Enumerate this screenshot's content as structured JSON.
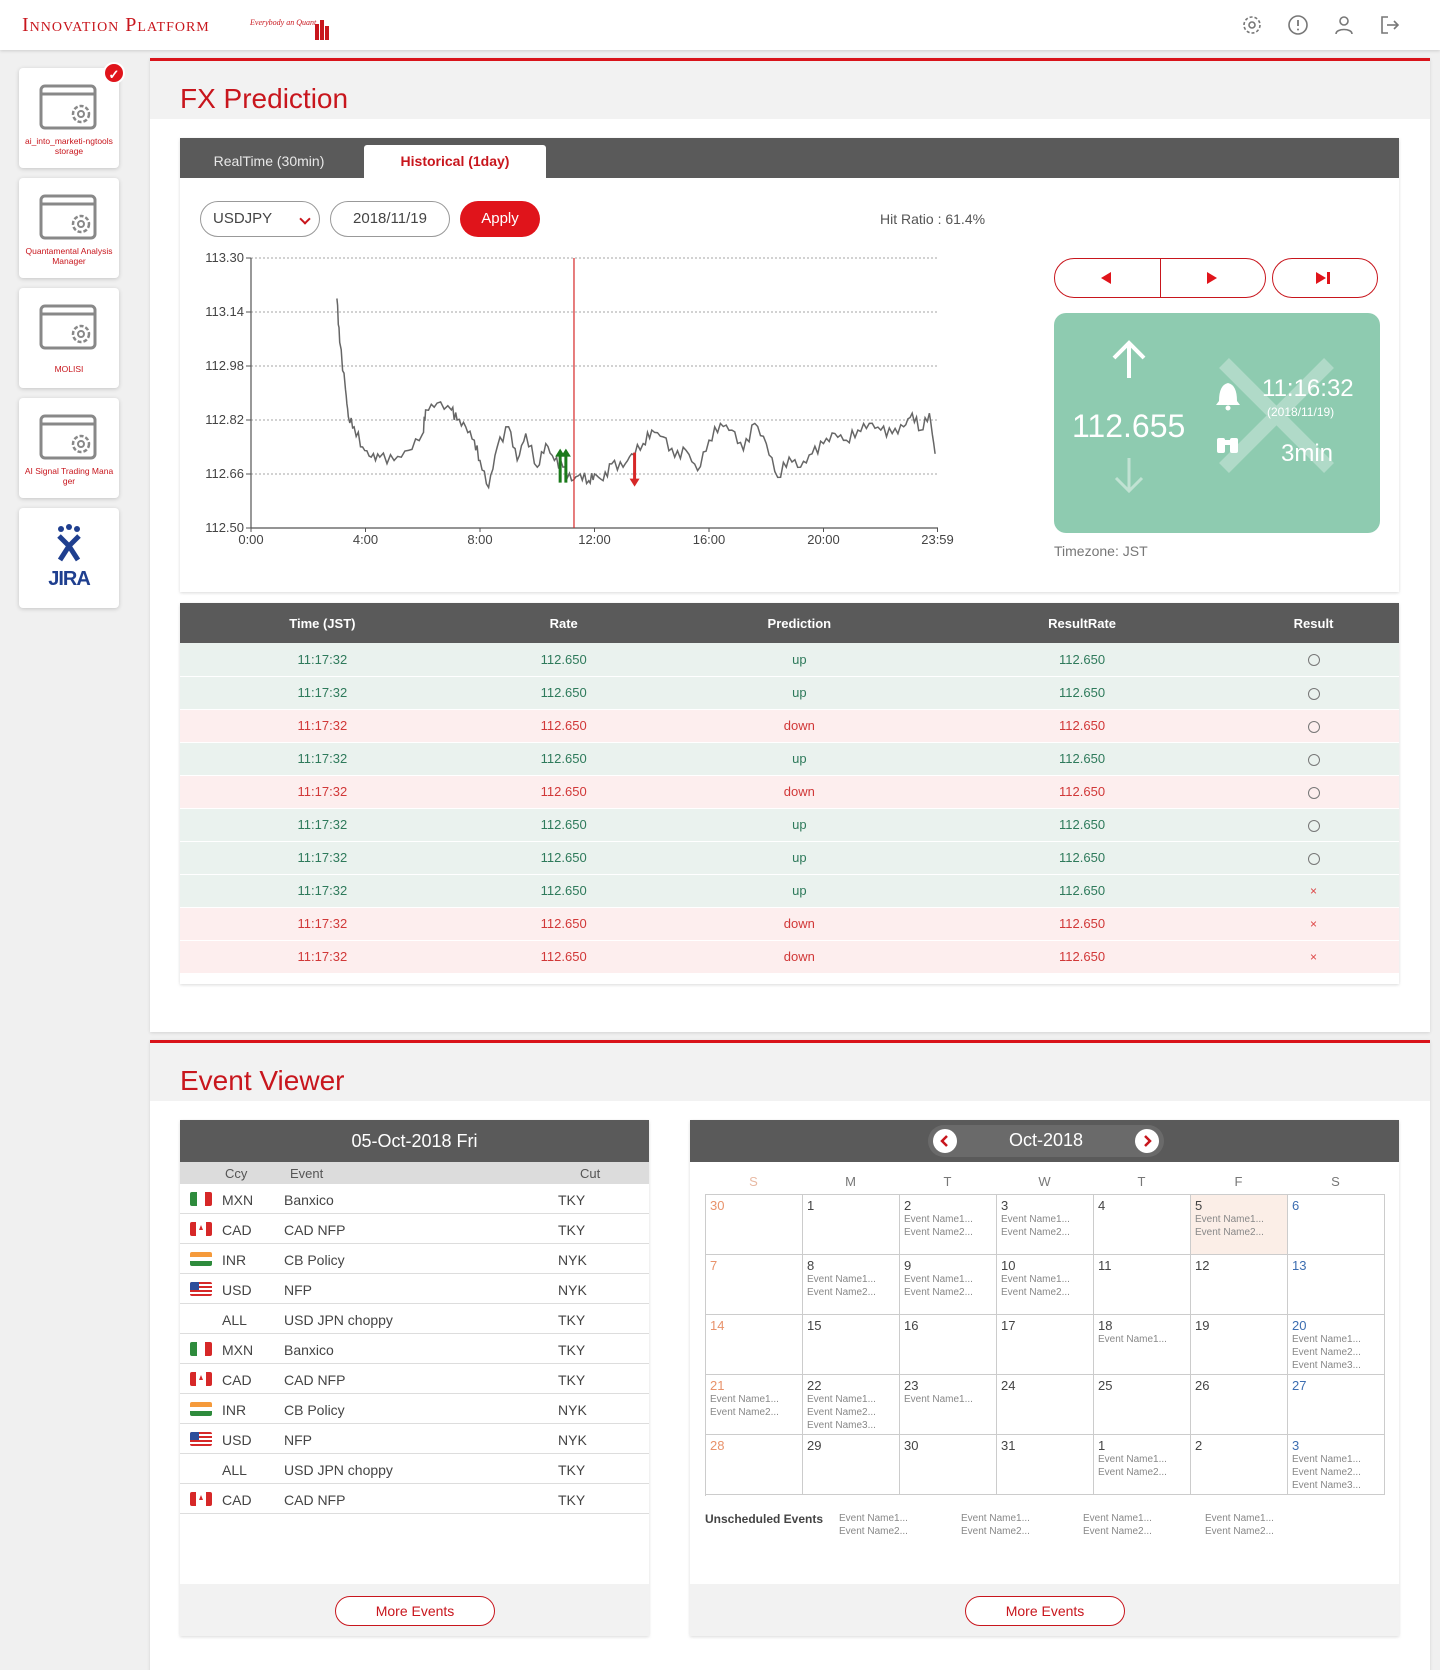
{
  "header": {
    "logo_text": "Innovation Platform",
    "logo_tagline": "Everybody an Quant"
  },
  "sidebar": {
    "apps": [
      {
        "label": "ai_into_marketi-ngtoolsstorage",
        "checked": true
      },
      {
        "label": "Quantamental Analysis Manager"
      },
      {
        "label": "MOLISI"
      },
      {
        "label": "AI Signal Trading Manager"
      },
      {
        "label": "JIRA"
      }
    ]
  },
  "fx": {
    "title": "FX Prediction",
    "tabs": [
      "RealTime (30min)",
      "Historical (1day)"
    ],
    "pair": "USDJPY",
    "date": "2018/11/19",
    "apply_label": "Apply",
    "hit_ratio": "Hit Ratio : 61.4%",
    "prediction": {
      "rate": "112.655",
      "time": "11:16:32",
      "date": "(2018/11/19)",
      "duration": "3min"
    },
    "timezone": "Timezone: JST",
    "table": {
      "headers": [
        "Time (JST)",
        "Rate",
        "Prediction",
        "ResultRate",
        "Result"
      ],
      "rows": [
        {
          "time": "11:17:32",
          "rate": "112.650",
          "prediction": "up",
          "result_rate": "112.650",
          "result": "hit"
        },
        {
          "time": "11:17:32",
          "rate": "112.650",
          "prediction": "up",
          "result_rate": "112.650",
          "result": "hit"
        },
        {
          "time": "11:17:32",
          "rate": "112.650",
          "prediction": "down",
          "result_rate": "112.650",
          "result": "hit"
        },
        {
          "time": "11:17:32",
          "rate": "112.650",
          "prediction": "up",
          "result_rate": "112.650",
          "result": "hit"
        },
        {
          "time": "11:17:32",
          "rate": "112.650",
          "prediction": "down",
          "result_rate": "112.650",
          "result": "hit"
        },
        {
          "time": "11:17:32",
          "rate": "112.650",
          "prediction": "up",
          "result_rate": "112.650",
          "result": "hit"
        },
        {
          "time": "11:17:32",
          "rate": "112.650",
          "prediction": "up",
          "result_rate": "112.650",
          "result": "hit"
        },
        {
          "time": "11:17:32",
          "rate": "112.650",
          "prediction": "up",
          "result_rate": "112.650",
          "result": "miss"
        },
        {
          "time": "11:17:32",
          "rate": "112.650",
          "prediction": "down",
          "result_rate": "112.650",
          "result": "miss"
        },
        {
          "time": "11:17:32",
          "rate": "112.650",
          "prediction": "down",
          "result_rate": "112.650",
          "result": "miss"
        }
      ],
      "miss_symbol": "×"
    }
  },
  "chart_data": {
    "type": "line",
    "y_ticks": [
      "113.30",
      "113.14",
      "112.98",
      "112.82",
      "112.66",
      "112.50"
    ],
    "x_ticks": [
      "0:00",
      "4:00",
      "8:00",
      "12:00",
      "16:00",
      "20:00",
      "23:59"
    ],
    "ylim": [
      112.5,
      113.3
    ],
    "grid": true,
    "current_time": "11:17",
    "series": [
      {
        "x": [
          3.0,
          3.1,
          3.3,
          3.4,
          3.6,
          3.9,
          4.2,
          4.5,
          5.0,
          5.5,
          6.0,
          6.1,
          6.5,
          7.0,
          7.2,
          7.5,
          7.8,
          8.0,
          8.3,
          8.6,
          9.0,
          9.3,
          9.6,
          10.0,
          10.3,
          10.6,
          10.9,
          11.2,
          11.5,
          11.8,
          12.0,
          12.3,
          12.6,
          13.0,
          13.3,
          13.7,
          14.0,
          14.4,
          14.8,
          15.2,
          15.6,
          16.0,
          16.4,
          16.8,
          17.2,
          17.6,
          18.0,
          18.4,
          18.8,
          19.2,
          19.6,
          20.0,
          20.4,
          20.8,
          21.2,
          21.6,
          22.0,
          22.4,
          22.8,
          23.1,
          23.4,
          23.7,
          23.9
        ],
        "y": [
          113.18,
          113.05,
          112.91,
          112.83,
          112.8,
          112.74,
          112.71,
          112.71,
          112.7,
          112.73,
          112.78,
          112.85,
          112.87,
          112.85,
          112.82,
          112.8,
          112.76,
          112.7,
          112.62,
          112.74,
          112.8,
          112.7,
          112.78,
          112.68,
          112.75,
          112.7,
          112.68,
          112.64,
          112.66,
          112.64,
          112.66,
          112.64,
          112.69,
          112.68,
          112.72,
          112.75,
          112.79,
          112.77,
          112.71,
          112.73,
          112.67,
          112.76,
          112.81,
          112.79,
          112.73,
          112.81,
          112.75,
          112.65,
          112.71,
          112.68,
          112.72,
          112.75,
          112.78,
          112.76,
          112.79,
          112.81,
          112.79,
          112.78,
          112.8,
          112.84,
          112.79,
          112.84,
          112.72
        ]
      }
    ],
    "markers": [
      {
        "x": 10.8,
        "y": 112.67,
        "direction": "up"
      },
      {
        "x": 11.0,
        "y": 112.67,
        "direction": "up"
      },
      {
        "x": 13.4,
        "y": 112.67,
        "direction": "down"
      }
    ]
  },
  "events": {
    "title": "Event Viewer",
    "list_date": "05-Oct-2018 Fri",
    "columns": [
      "Ccy",
      "Event",
      "Cut"
    ],
    "rows": [
      {
        "ccy": "MXN",
        "event": "Banxico",
        "cut": "TKY",
        "flag": "mx"
      },
      {
        "ccy": "CAD",
        "event": "CAD NFP",
        "cut": "TKY",
        "flag": "ca"
      },
      {
        "ccy": "INR",
        "event": "CB Policy",
        "cut": "NYK",
        "flag": "in"
      },
      {
        "ccy": "USD",
        "event": "NFP",
        "cut": "NYK",
        "flag": "us"
      },
      {
        "ccy": "ALL",
        "event": "USD JPN choppy",
        "cut": "TKY",
        "flag": ""
      },
      {
        "ccy": "MXN",
        "event": "Banxico",
        "cut": "TKY",
        "flag": "mx"
      },
      {
        "ccy": "CAD",
        "event": "CAD NFP",
        "cut": "TKY",
        "flag": "ca"
      },
      {
        "ccy": "INR",
        "event": "CB Policy",
        "cut": "NYK",
        "flag": "in"
      },
      {
        "ccy": "USD",
        "event": "NFP",
        "cut": "NYK",
        "flag": "us"
      },
      {
        "ccy": "ALL",
        "event": "USD JPN choppy",
        "cut": "TKY",
        "flag": ""
      },
      {
        "ccy": "CAD",
        "event": "CAD NFP",
        "cut": "TKY",
        "flag": "ca"
      }
    ],
    "more_label": "More Events",
    "calendar": {
      "month": "Oct-2018",
      "dow": [
        "S",
        "M",
        "T",
        "W",
        "T",
        "F",
        "S"
      ],
      "weeks": [
        [
          {
            "d": "30",
            "ev": []
          },
          {
            "d": "1",
            "ev": []
          },
          {
            "d": "2",
            "ev": [
              "Event Name1...",
              "Event Name2..."
            ]
          },
          {
            "d": "3",
            "ev": [
              "Event Name1...",
              "Event Name2..."
            ]
          },
          {
            "d": "4",
            "ev": []
          },
          {
            "d": "5",
            "ev": [
              "Event Name1...",
              "Event Name2..."
            ],
            "hl": true
          },
          {
            "d": "6",
            "ev": []
          }
        ],
        [
          {
            "d": "7",
            "ev": []
          },
          {
            "d": "8",
            "ev": [
              "Event Name1...",
              "Event Name2..."
            ]
          },
          {
            "d": "9",
            "ev": [
              "Event Name1...",
              "Event Name2..."
            ]
          },
          {
            "d": "10",
            "ev": [
              "Event Name1...",
              "Event Name2..."
            ]
          },
          {
            "d": "11",
            "ev": []
          },
          {
            "d": "12",
            "ev": []
          },
          {
            "d": "13",
            "ev": []
          }
        ],
        [
          {
            "d": "14",
            "ev": []
          },
          {
            "d": "15",
            "ev": []
          },
          {
            "d": "16",
            "ev": []
          },
          {
            "d": "17",
            "ev": []
          },
          {
            "d": "18",
            "ev": [
              "Event Name1..."
            ]
          },
          {
            "d": "19",
            "ev": []
          },
          {
            "d": "20",
            "ev": [
              "Event Name1...",
              "Event Name2...",
              "Event Name3..."
            ]
          }
        ],
        [
          {
            "d": "21",
            "ev": [
              "Event Name1...",
              "Event Name2..."
            ]
          },
          {
            "d": "22",
            "ev": [
              "Event Name1...",
              "Event Name2...",
              "Event Name3..."
            ]
          },
          {
            "d": "23",
            "ev": [
              "Event Name1..."
            ]
          },
          {
            "d": "24",
            "ev": []
          },
          {
            "d": "25",
            "ev": []
          },
          {
            "d": "26",
            "ev": []
          },
          {
            "d": "27",
            "ev": []
          }
        ],
        [
          {
            "d": "28",
            "ev": []
          },
          {
            "d": "29",
            "ev": []
          },
          {
            "d": "30",
            "ev": []
          },
          {
            "d": "31",
            "ev": []
          },
          {
            "d": "1",
            "ev": [
              "Event Name1...",
              "Event Name2..."
            ]
          },
          {
            "d": "2",
            "ev": []
          },
          {
            "d": "3",
            "ev": [
              "Event Name1...",
              "Event Name2...",
              "Event Name3..."
            ]
          }
        ]
      ],
      "unscheduled_label": "Unscheduled Events",
      "unscheduled": [
        [
          "Event Name1...",
          "Event Name2..."
        ],
        [
          "Event Name1...",
          "Event Name2..."
        ],
        [
          "Event Name1...",
          "Event Name2..."
        ],
        [
          "Event Name1...",
          "Event Name2..."
        ]
      ]
    }
  },
  "colors": {
    "brand": "#c8161d",
    "up": "#2e7a5b",
    "down": "#d13838",
    "prediction_box": "#8ecbb0"
  }
}
